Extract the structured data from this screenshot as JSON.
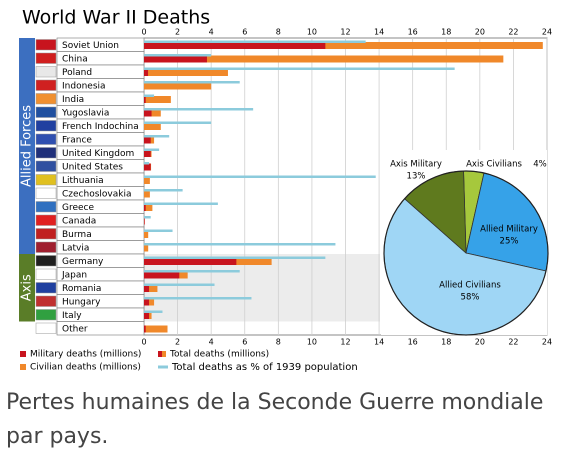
{
  "chart_data": [
    {
      "type": "bar",
      "title": "World War II Deaths",
      "categories": [
        "Soviet Union",
        "China",
        "Poland",
        "Indonesia",
        "India",
        "Yugoslavia",
        "French Indochina",
        "France",
        "United Kingdom",
        "United States",
        "Lithuania",
        "Czechoslovakia",
        "Greece",
        "Canada",
        "Burma",
        "Latvia",
        "Germany",
        "Japan",
        "Romania",
        "Hungary",
        "Italy",
        "Other"
      ],
      "groups": [
        "Allied Forces",
        "Axis"
      ],
      "series": [
        {
          "name": "Military deaths (millions)",
          "color": "#c8141e",
          "values": [
            10.8,
            3.75,
            0.24,
            0,
            0.1,
            0.45,
            0,
            0.4,
            0.4,
            0.4,
            0,
            0,
            0.1,
            0.04,
            0,
            0,
            5.5,
            2.1,
            0.3,
            0.3,
            0.3,
            0.1
          ]
        },
        {
          "name": "Total deaths (millions)",
          "color": "#f0882a",
          "values": [
            23.75,
            21.4,
            5,
            4,
            1.6,
            1,
            1,
            0.6,
            0.45,
            0.42,
            0.35,
            0.35,
            0.5,
            0.04,
            0.25,
            0.25,
            7.6,
            2.6,
            0.8,
            0.6,
            0.45,
            1.4
          ]
        },
        {
          "name": "Total deaths as % of 1939 population",
          "color": "#8ccbdc",
          "values": [
            13.2,
            4,
            18.5,
            5.7,
            0.6,
            6.5,
            4,
            1.5,
            0.9,
            0.3,
            13.8,
            2.3,
            4.4,
            0.4,
            1.7,
            11.4,
            10.8,
            5.7,
            4.2,
            6.4,
            1.1,
            null
          ]
        }
      ],
      "civilian_legend": {
        "name": "Civilian deaths (millions)",
        "color": "#f0882a"
      },
      "xlim": [
        0,
        24
      ],
      "xticks": [
        0,
        2,
        4,
        6,
        8,
        10,
        12,
        14,
        16,
        18,
        20,
        22,
        24
      ],
      "grid": true
    },
    {
      "type": "pie",
      "categories": [
        "Axis Civilians",
        "Allied Military",
        "Allied Civilians",
        "Axis Military"
      ],
      "values": [
        4,
        25,
        58,
        13
      ],
      "value_labels": [
        "4%",
        "25%",
        "58%",
        "13%"
      ],
      "colors": [
        "#a6c83c",
        "#36a2e8",
        "#9fd6f5",
        "#5f7a1e"
      ]
    }
  ],
  "caption": "Pertes humaines de la Seconde Guerre mondiale par pays."
}
